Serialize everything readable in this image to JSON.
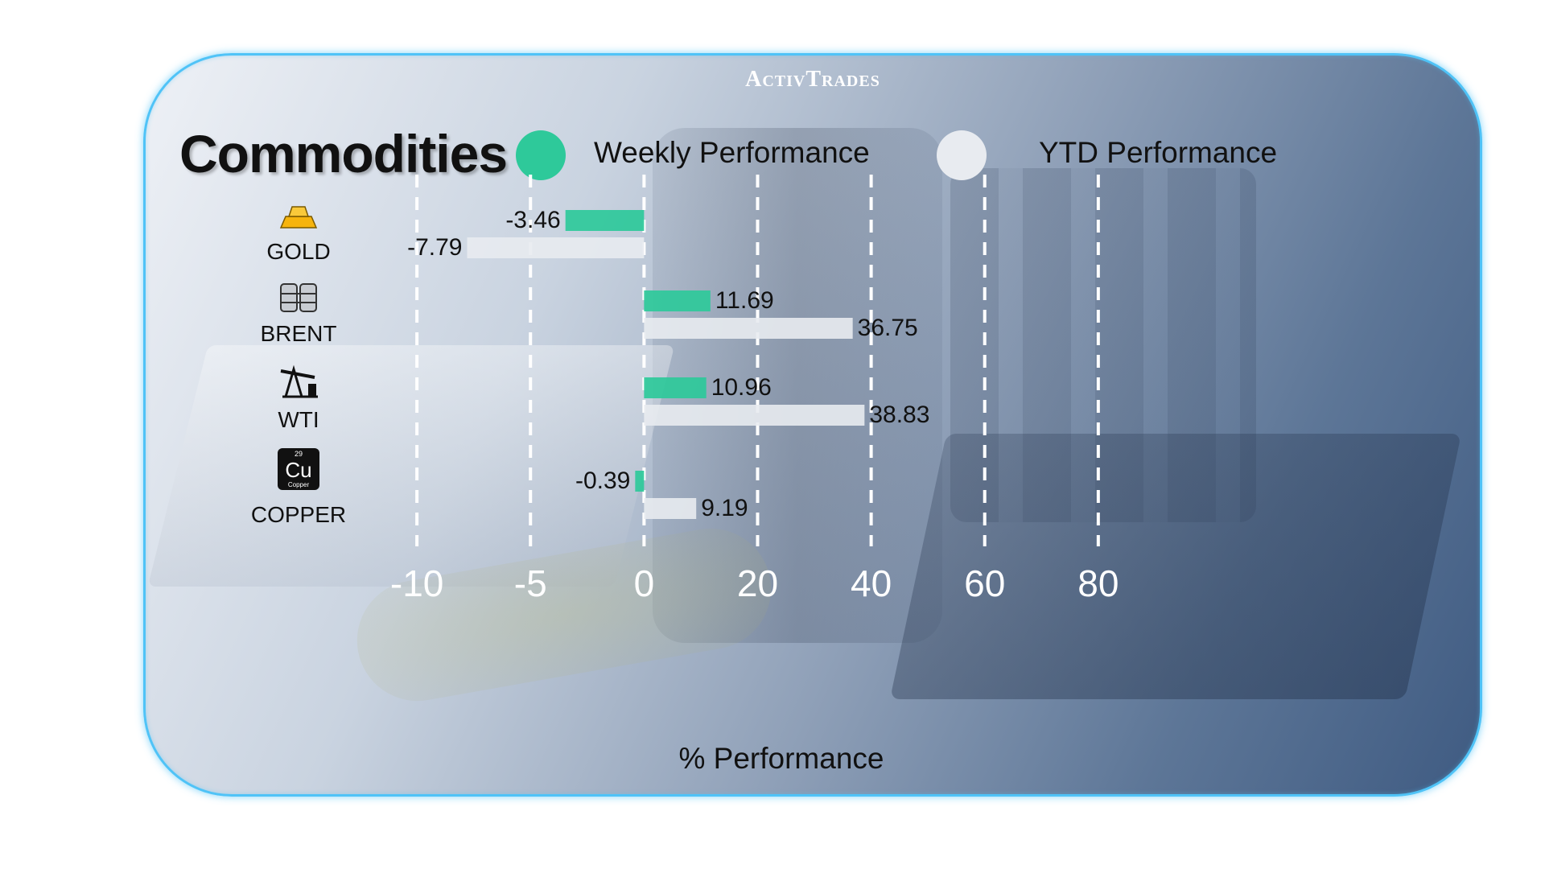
{
  "brand": "ActivTrades",
  "colors": {
    "weekly": "#2ec99a",
    "ytd": "#e8ebf0",
    "grid": "#ffffff",
    "border": "#4fc3f7"
  },
  "chart_data": {
    "type": "bar",
    "orientation": "horizontal",
    "title": "Commodities",
    "categories": [
      "GOLD",
      "BRENT",
      "WTI",
      "COPPER"
    ],
    "category_icons": [
      "gold-bars-icon",
      "oil-barrels-icon",
      "oil-pump-icon",
      "copper-element-icon"
    ],
    "copper_icon_text": {
      "number": "29",
      "symbol": "Cu",
      "name": "Copper"
    },
    "series": [
      {
        "name": "Weekly Performance",
        "values": [
          -3.46,
          11.69,
          10.96,
          -0.39
        ],
        "labels": [
          "-3.46",
          "11.69",
          "10.96",
          "-0.39"
        ]
      },
      {
        "name": "YTD Performance",
        "values": [
          -7.79,
          36.75,
          38.83,
          9.19
        ],
        "labels": [
          "-7.79",
          "36.75",
          "38.83",
          "9.19"
        ]
      }
    ],
    "xlabel": "% Performance",
    "x_ticks": [
      -10,
      -5,
      0,
      20,
      40,
      60,
      80
    ],
    "x_tick_labels": [
      "-10",
      "-5",
      "0",
      "20",
      "40",
      "60",
      "80"
    ],
    "grid": "vertical dashed",
    "legend": "top"
  }
}
